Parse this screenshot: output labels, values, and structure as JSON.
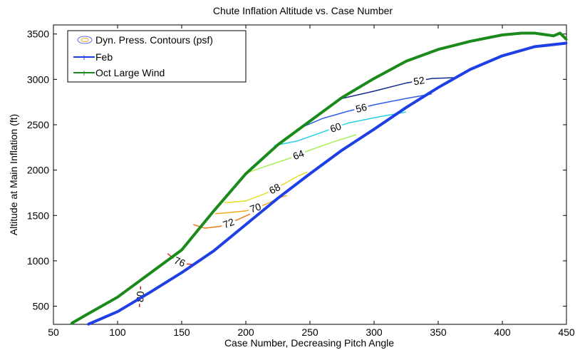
{
  "chart_data": {
    "type": "line",
    "title": "Chute Inflation Altitude vs. Case Number",
    "xlabel": "Case Number, Decreasing Pitch Angle",
    "ylabel": "Altitude at Main Inflation (ft)",
    "xlim": [
      50,
      450
    ],
    "ylim": [
      300,
      3600
    ],
    "xticks": [
      50,
      100,
      150,
      200,
      250,
      300,
      350,
      400,
      450
    ],
    "yticks": [
      500,
      1000,
      1500,
      2000,
      2500,
      3000,
      3500
    ],
    "grid": false,
    "legend_position": "top-left",
    "legend": [
      "Dyn. Press. Contours (psf)",
      "Feb",
      "Oct Large Wind"
    ],
    "series": [
      {
        "name": "Feb",
        "color": "#1f3fe6",
        "x": [
          77,
          100,
          125,
          150,
          175,
          200,
          225,
          250,
          275,
          300,
          325,
          350,
          375,
          400,
          425,
          450
        ],
        "y": [
          300,
          440,
          650,
          870,
          1110,
          1400,
          1690,
          1960,
          2220,
          2450,
          2690,
          2910,
          3110,
          3260,
          3360,
          3400
        ]
      },
      {
        "name": "Oct Large Wind",
        "color": "#1a8a1a",
        "x": [
          64,
          75,
          100,
          125,
          150,
          175,
          200,
          225,
          250,
          275,
          300,
          325,
          350,
          375,
          400,
          415,
          425,
          440,
          445,
          450
        ],
        "y": [
          310,
          400,
          600,
          860,
          1120,
          1550,
          1960,
          2280,
          2540,
          2800,
          3010,
          3200,
          3330,
          3420,
          3490,
          3510,
          3510,
          3480,
          3510,
          3440
        ]
      }
    ],
    "contours": [
      {
        "level": 80,
        "color": "#d81515",
        "x": [
          117,
          118
        ],
        "y": [
          490,
          720
        ]
      },
      {
        "level": 76,
        "color": "#e8321e",
        "x": [
          139,
          145,
          152,
          158
        ],
        "y": [
          1080,
          1010,
          970,
          960
        ]
      },
      {
        "level": 72,
        "color": "#f07a1a",
        "x": [
          159,
          168,
          180,
          193,
          204,
          210
        ],
        "y": [
          1400,
          1360,
          1380,
          1450,
          1520,
          1550
        ]
      },
      {
        "level": 70,
        "color": "#f3a81e",
        "x": [
          176,
          185,
          200,
          215,
          227,
          232
        ],
        "y": [
          1520,
          1530,
          1550,
          1620,
          1700,
          1720
        ]
      },
      {
        "level": 68,
        "color": "#e6dc2a",
        "x": [
          183,
          200,
          215,
          230,
          240,
          248
        ],
        "y": [
          1640,
          1660,
          1740,
          1850,
          1930,
          1980
        ]
      },
      {
        "level": 64,
        "color": "#a7f05a",
        "x": [
          199,
          215,
          232,
          250,
          268,
          286
        ],
        "y": [
          1960,
          2040,
          2120,
          2220,
          2310,
          2390
        ]
      },
      {
        "level": 60,
        "color": "#27cfe8",
        "x": [
          222,
          240,
          260,
          280,
          305,
          325
        ],
        "y": [
          2270,
          2320,
          2420,
          2520,
          2590,
          2640
        ]
      },
      {
        "level": 56,
        "color": "#2f5fe8",
        "x": [
          240,
          260,
          280,
          300,
          325,
          345
        ],
        "y": [
          2450,
          2570,
          2650,
          2720,
          2790,
          2840
        ]
      },
      {
        "level": 52,
        "color": "#122a8c",
        "x": [
          275,
          300,
          325,
          345,
          365
        ],
        "y": [
          2790,
          2870,
          2960,
          3010,
          3020
        ]
      }
    ],
    "contour_labels": [
      "52",
      "56",
      "60",
      "64",
      "68",
      "70",
      "72",
      "76",
      "80"
    ]
  }
}
